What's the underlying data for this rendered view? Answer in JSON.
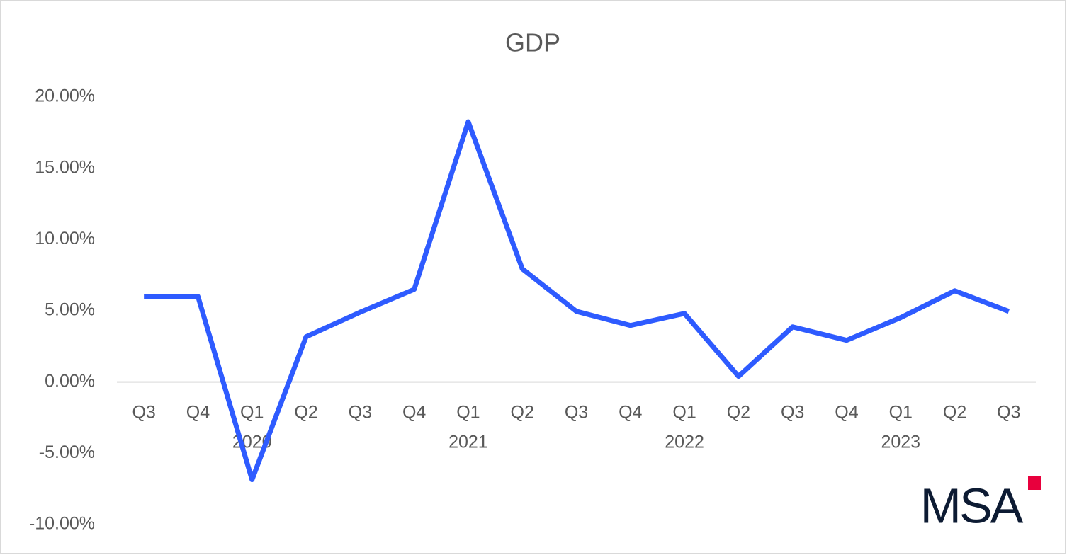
{
  "chart_data": {
    "type": "line",
    "title": "GDP",
    "categories": [
      "Q3",
      "Q4",
      "Q1",
      "Q2",
      "Q3",
      "Q4",
      "Q1",
      "Q2",
      "Q3",
      "Q4",
      "Q1",
      "Q2",
      "Q3",
      "Q4",
      "Q1",
      "Q2",
      "Q3"
    ],
    "year_labels": [
      null,
      null,
      "2020",
      null,
      null,
      null,
      "2021",
      null,
      null,
      null,
      "2022",
      null,
      null,
      null,
      "2023",
      null,
      null
    ],
    "series": [
      {
        "name": "GDP",
        "color": "#2e5bff",
        "values": [
          6.0,
          6.0,
          -6.85,
          3.18,
          4.9,
          6.5,
          18.26,
          7.94,
          4.96,
          3.97,
          4.81,
          0.4,
          3.87,
          2.93,
          4.52,
          6.4,
          4.96
        ]
      }
    ],
    "ylim": [
      -10,
      20
    ],
    "yticks": [
      {
        "value": -10,
        "label": "-10.00%"
      },
      {
        "value": -5,
        "label": "-5.00%"
      },
      {
        "value": 0,
        "label": "0.00%"
      },
      {
        "value": 5,
        "label": "5.00%"
      },
      {
        "value": 10,
        "label": "10.00%"
      },
      {
        "value": 15,
        "label": "15.00%"
      },
      {
        "value": 20,
        "label": "20.00%"
      }
    ],
    "grid": false,
    "logo": "MSA"
  }
}
